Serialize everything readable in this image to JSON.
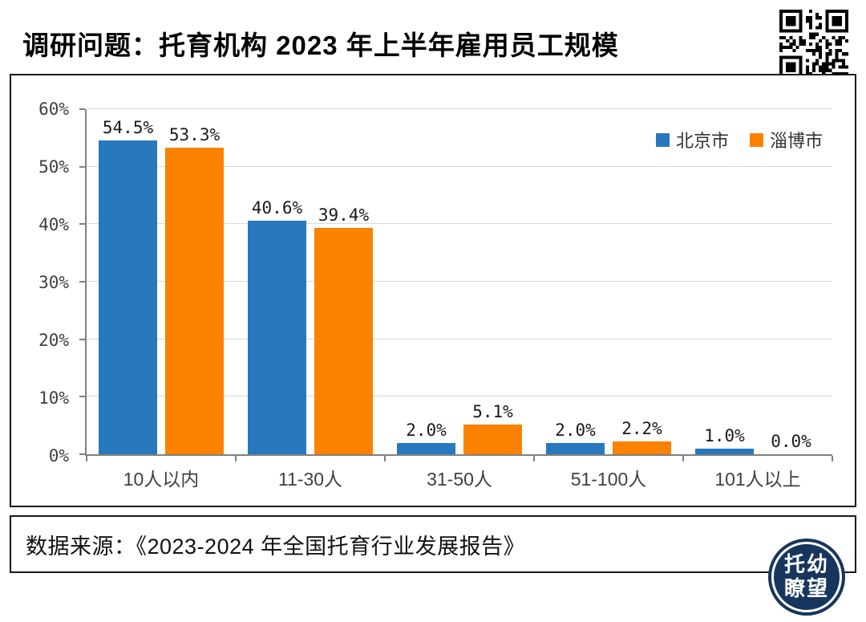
{
  "title": "调研问题：托育机构 2023 年上半年雇用员工规模",
  "source": "数据来源：《2023-2024 年全国托育行业发展报告》",
  "logo": {
    "line1": "托幼",
    "line2": "瞭望"
  },
  "colors": {
    "beijing_blue": "#2878BE",
    "zibo_orange": "#FA8200",
    "grid": "#d9d9d9",
    "axis": "#808080"
  },
  "chart_data": {
    "type": "bar",
    "title": "调研问题：托育机构 2023 年上半年雇用员工规模",
    "categories": [
      "10人以内",
      "11-30人",
      "31-50人",
      "51-100人",
      "101人以上"
    ],
    "series": [
      {
        "name": "北京市",
        "color": "#2878BE",
        "values": [
          54.5,
          40.6,
          2.0,
          2.0,
          1.0
        ],
        "labels": [
          "54.5%",
          "40.6%",
          "2.0%",
          "2.0%",
          "1.0%"
        ]
      },
      {
        "name": "淄博市",
        "color": "#FA8200",
        "values": [
          53.3,
          39.4,
          5.1,
          2.2,
          0.0
        ],
        "labels": [
          "53.3%",
          "39.4%",
          "5.1%",
          "2.2%",
          "0.0%"
        ]
      }
    ],
    "xlabel": "",
    "ylabel": "",
    "ylim": [
      0,
      60
    ],
    "yticks": [
      {
        "value": 0,
        "label": "0%"
      },
      {
        "value": 10,
        "label": "10%"
      },
      {
        "value": 20,
        "label": "20%"
      },
      {
        "value": 30,
        "label": "30%"
      },
      {
        "value": 40,
        "label": "40%"
      },
      {
        "value": 50,
        "label": "50%"
      },
      {
        "value": 60,
        "label": "60%"
      }
    ],
    "grid": true,
    "legend_position": "top-right"
  }
}
